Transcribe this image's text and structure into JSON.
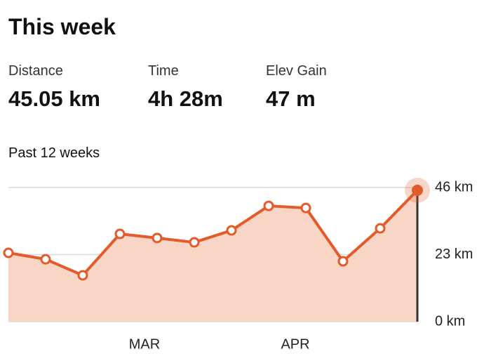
{
  "header": {
    "title": "This week"
  },
  "stats": [
    {
      "label": "Distance",
      "value": "45.05 km"
    },
    {
      "label": "Time",
      "value": "4h 28m"
    },
    {
      "label": "Elev Gain",
      "value": "47 m"
    }
  ],
  "chart_data": {
    "type": "line",
    "subtitle": "Past 12 weeks",
    "categories": [
      null,
      null,
      null,
      null,
      null,
      null,
      null,
      null,
      null,
      null,
      null,
      null
    ],
    "month_labels": [
      "MAR",
      "APR"
    ],
    "series": [
      {
        "name": "Distance",
        "color": "#e35b2a",
        "fill": "#f8d5c4",
        "values": [
          23.6,
          21.4,
          15.9,
          30.1,
          28.7,
          27.2,
          31.3,
          39.7,
          39.0,
          20.7,
          32.0,
          45.05
        ]
      }
    ],
    "ylim": [
      0,
      46
    ],
    "yticks": [
      {
        "value": 0,
        "label": "0 km"
      },
      {
        "value": 23,
        "label": "23 km"
      },
      {
        "value": 46,
        "label": "46 km"
      }
    ],
    "grid": true
  }
}
